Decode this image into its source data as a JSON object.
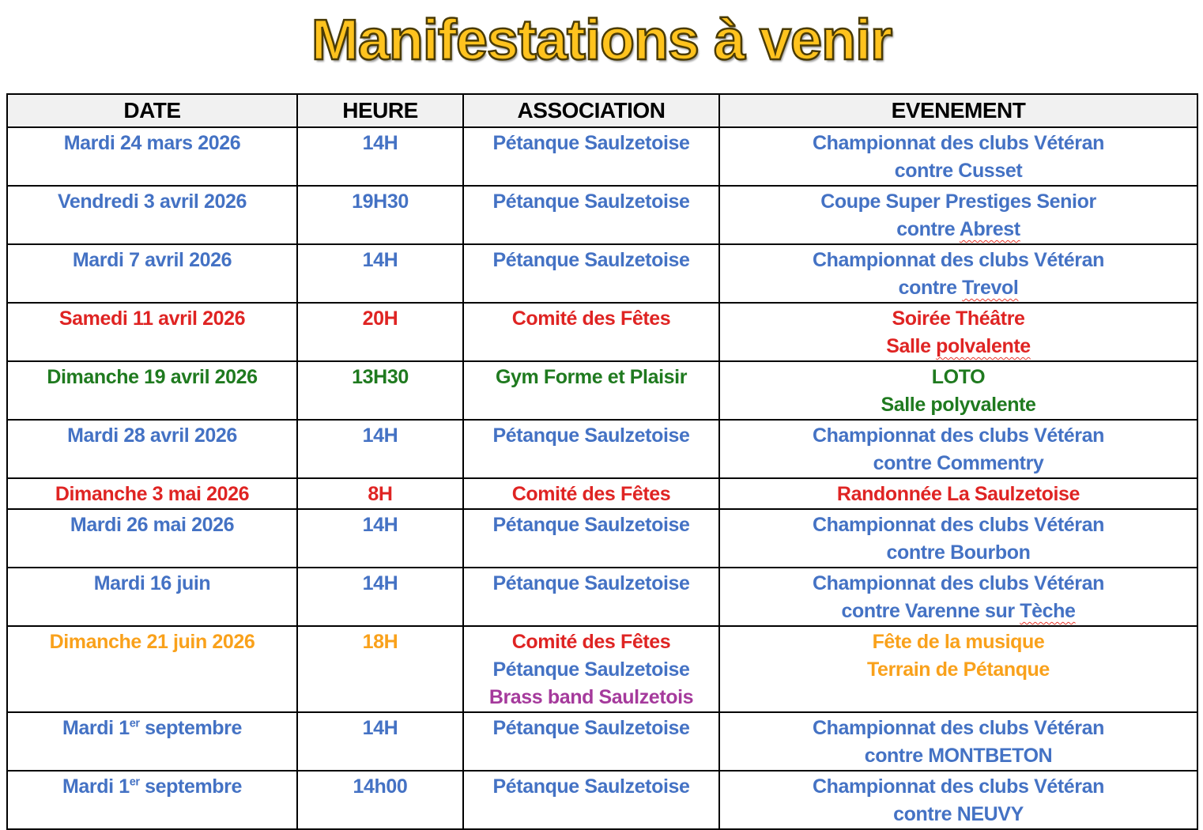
{
  "title": "Manifestations à venir",
  "colors": {
    "blue": "#4472C4",
    "red": "#DF2423",
    "green": "#1F7A1F",
    "orange": "#F9A11B",
    "purple": "#A53A9C",
    "header_bg": "#F1F1F1",
    "header_text": "#000000",
    "title_gold": "#FFC31E",
    "wavy_underline": "#E8392E",
    "border": "#000000"
  },
  "table": {
    "headers": [
      "DATE",
      "HEURE",
      "ASSOCIATION",
      "EVENEMENT"
    ],
    "rows": [
      {
        "height": "normal",
        "date": [
          [
            {
              "t": "Mardi 24 mars 2026",
              "c": "blue"
            }
          ]
        ],
        "heure": [
          [
            {
              "t": "14H",
              "c": "blue"
            }
          ]
        ],
        "association": [
          [
            {
              "t": "Pétanque Saulzetoise",
              "c": "blue"
            }
          ]
        ],
        "evenement": [
          [
            {
              "t": "Championnat des clubs Vétéran",
              "c": "blue"
            }
          ],
          [
            {
              "t": "contre Cusset",
              "c": "blue"
            }
          ]
        ]
      },
      {
        "height": "normal",
        "date": [
          [
            {
              "t": "Vendredi 3 avril 2026",
              "c": "blue"
            }
          ]
        ],
        "heure": [
          [
            {
              "t": "19H30",
              "c": "blue"
            }
          ]
        ],
        "association": [
          [
            {
              "t": "Pétanque Saulzetoise",
              "c": "blue"
            }
          ]
        ],
        "evenement": [
          [
            {
              "t": "Coupe Super Prestiges Senior",
              "c": "blue"
            }
          ],
          [
            {
              "t": "contre ",
              "c": "blue"
            },
            {
              "t": "Abrest",
              "c": "blue",
              "w": true
            }
          ]
        ]
      },
      {
        "height": "normal",
        "date": [
          [
            {
              "t": "Mardi 7 avril 2026",
              "c": "blue"
            }
          ]
        ],
        "heure": [
          [
            {
              "t": "14H",
              "c": "blue"
            }
          ]
        ],
        "association": [
          [
            {
              "t": "Pétanque Saulzetoise",
              "c": "blue"
            }
          ]
        ],
        "evenement": [
          [
            {
              "t": "Championnat des clubs Vétéran",
              "c": "blue"
            }
          ],
          [
            {
              "t": "contre ",
              "c": "blue"
            },
            {
              "t": "Trevol",
              "c": "blue",
              "w": true
            }
          ]
        ]
      },
      {
        "height": "normal",
        "date": [
          [
            {
              "t": "Samedi 11 avril 2026",
              "c": "red"
            }
          ]
        ],
        "heure": [
          [
            {
              "t": "20H",
              "c": "red"
            }
          ]
        ],
        "association": [
          [
            {
              "t": "Comité des Fêtes",
              "c": "red"
            }
          ]
        ],
        "evenement": [
          [
            {
              "t": "Soirée Théâtre",
              "c": "red"
            }
          ],
          [
            {
              "t": "Salle ",
              "c": "red"
            },
            {
              "t": "polvalente",
              "c": "red",
              "w": true
            }
          ]
        ]
      },
      {
        "height": "normal",
        "date": [
          [
            {
              "t": "Dimanche 19 avril 2026",
              "c": "green"
            }
          ]
        ],
        "heure": [
          [
            {
              "t": "13H30",
              "c": "green"
            }
          ]
        ],
        "association": [
          [
            {
              "t": "Gym Forme et Plaisir",
              "c": "green"
            }
          ]
        ],
        "evenement": [
          [
            {
              "t": "LOTO",
              "c": "green"
            }
          ],
          [
            {
              "t": "Salle polyvalente",
              "c": "green"
            }
          ]
        ]
      },
      {
        "height": "normal",
        "date": [
          [
            {
              "t": "Mardi 28 avril 2026",
              "c": "blue"
            }
          ]
        ],
        "heure": [
          [
            {
              "t": "14H",
              "c": "blue"
            }
          ]
        ],
        "association": [
          [
            {
              "t": "Pétanque Saulzetoise",
              "c": "blue"
            }
          ]
        ],
        "evenement": [
          [
            {
              "t": "Championnat des clubs Vétéran",
              "c": "blue"
            }
          ],
          [
            {
              "t": "contre Commentry",
              "c": "blue"
            }
          ]
        ]
      },
      {
        "height": "small",
        "date": [
          [
            {
              "t": "Dimanche 3 mai 2026",
              "c": "red"
            }
          ]
        ],
        "heure": [
          [
            {
              "t": "8H",
              "c": "red"
            }
          ]
        ],
        "association": [
          [
            {
              "t": "Comité des Fêtes",
              "c": "red"
            }
          ]
        ],
        "evenement": [
          [
            {
              "t": "Randonnée La Saulzetoise",
              "c": "red"
            }
          ]
        ]
      },
      {
        "height": "normal",
        "date": [
          [
            {
              "t": "Mardi 26 mai 2026",
              "c": "blue"
            }
          ]
        ],
        "heure": [
          [
            {
              "t": "14H",
              "c": "blue"
            }
          ]
        ],
        "association": [
          [
            {
              "t": "Pétanque Saulzetoise",
              "c": "blue"
            }
          ]
        ],
        "evenement": [
          [
            {
              "t": "Championnat des clubs Vétéran",
              "c": "blue"
            }
          ],
          [
            {
              "t": "contre Bourbon",
              "c": "blue"
            }
          ]
        ]
      },
      {
        "height": "normal",
        "date": [
          [
            {
              "t": "Mardi 16 juin",
              "c": "blue"
            }
          ]
        ],
        "heure": [
          [
            {
              "t": "14H",
              "c": "blue"
            }
          ]
        ],
        "association": [
          [
            {
              "t": "Pétanque Saulzetoise",
              "c": "blue"
            }
          ]
        ],
        "evenement": [
          [
            {
              "t": "Championnat des clubs Vétéran",
              "c": "blue"
            }
          ],
          [
            {
              "t": "contre Varenne sur ",
              "c": "blue"
            },
            {
              "t": "Tèche",
              "c": "blue",
              "w": true
            }
          ]
        ]
      },
      {
        "height": "tall",
        "date": [
          [
            {
              "t": "Dimanche 21 juin 2026",
              "c": "orange"
            }
          ]
        ],
        "heure": [
          [
            {
              "t": "18H",
              "c": "orange"
            }
          ]
        ],
        "association": [
          [
            {
              "t": "Comité des Fêtes",
              "c": "red"
            }
          ],
          [
            {
              "t": "Pétanque Saulzetoise",
              "c": "blue"
            }
          ],
          [
            {
              "t": "Brass band Saulzetois",
              "c": "purple"
            }
          ]
        ],
        "evenement": [
          [
            {
              "t": "Fête de la musique",
              "c": "orange"
            }
          ],
          [
            {
              "t": "Terrain de Pétanque",
              "c": "orange"
            }
          ]
        ]
      },
      {
        "height": "normal",
        "date": [
          [
            {
              "t": "Mardi 1",
              "c": "blue"
            },
            {
              "t": "er",
              "c": "blue",
              "sup": true
            },
            {
              "t": " septembre",
              "c": "blue"
            }
          ]
        ],
        "heure": [
          [
            {
              "t": "14H",
              "c": "blue"
            }
          ]
        ],
        "association": [
          [
            {
              "t": "Pétanque Saulzetoise",
              "c": "blue"
            }
          ]
        ],
        "evenement": [
          [
            {
              "t": "Championnat des clubs Vétéran",
              "c": "blue"
            }
          ],
          [
            {
              "t": "contre MONTBETON",
              "c": "blue"
            }
          ]
        ]
      },
      {
        "height": "normal",
        "date": [
          [
            {
              "t": "Mardi 1",
              "c": "blue"
            },
            {
              "t": "er",
              "c": "blue",
              "sup": true
            },
            {
              "t": " septembre",
              "c": "blue"
            }
          ]
        ],
        "heure": [
          [
            {
              "t": "14h00",
              "c": "blue"
            }
          ]
        ],
        "association": [
          [
            {
              "t": "Pétanque Saulzetoise",
              "c": "blue"
            }
          ]
        ],
        "evenement": [
          [
            {
              "t": "Championnat des clubs Vétéran",
              "c": "blue"
            }
          ],
          [
            {
              "t": "contre NEUVY",
              "c": "blue"
            }
          ]
        ]
      }
    ]
  }
}
